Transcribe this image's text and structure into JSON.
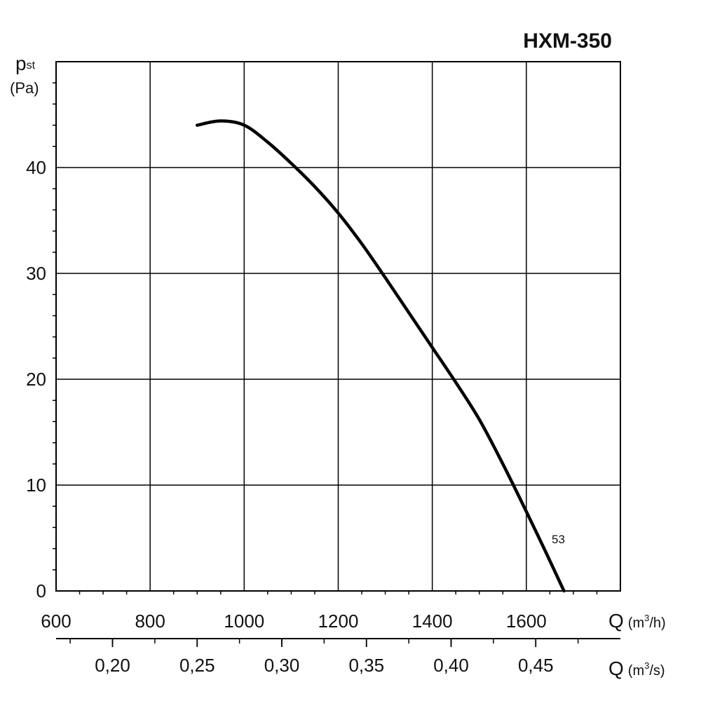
{
  "chart_data": {
    "type": "line",
    "title": "HXM-350",
    "y_axis": {
      "symbol": "p",
      "subscript": "st",
      "unit": "(Pa)",
      "ylim": [
        0,
        50
      ],
      "ticks": [
        0,
        10,
        20,
        30,
        40
      ],
      "tick_labels": [
        "0",
        "10",
        "20",
        "30",
        "40"
      ],
      "minor_step": 2
    },
    "x_axis": {
      "symbol": "Q",
      "unit_prefix": "(m",
      "unit_exp": "3",
      "unit_suffix": "/h)",
      "xlim": [
        600,
        1800
      ],
      "ticks": [
        600,
        800,
        1000,
        1200,
        1400,
        1600
      ],
      "tick_labels": [
        "600",
        "800",
        "1000",
        "1200",
        "1400",
        "1600"
      ],
      "grid_step": 200,
      "minor_step": 50
    },
    "x2_axis": {
      "symbol": "Q",
      "unit_prefix": "(m",
      "unit_exp": "3",
      "unit_suffix": "/s)",
      "ticks": [
        0.2,
        0.25,
        0.3,
        0.35,
        0.4,
        0.45
      ],
      "tick_labels": [
        "0,20",
        "0,25",
        "0,30",
        "0,35",
        "0,40",
        "0,45"
      ],
      "minor_step": 0.025
    },
    "grid": true,
    "series": [
      {
        "label": "53",
        "x": [
          900,
          950,
          1000,
          1050,
          1100,
          1150,
          1200,
          1250,
          1300,
          1350,
          1400,
          1450,
          1500,
          1550,
          1600,
          1640,
          1680
        ],
        "y": [
          44.0,
          44.4,
          44.0,
          42.4,
          40.4,
          38.2,
          35.7,
          32.8,
          29.6,
          26.3,
          23.0,
          19.7,
          16.2,
          12.0,
          7.5,
          3.8,
          0
        ]
      }
    ]
  }
}
